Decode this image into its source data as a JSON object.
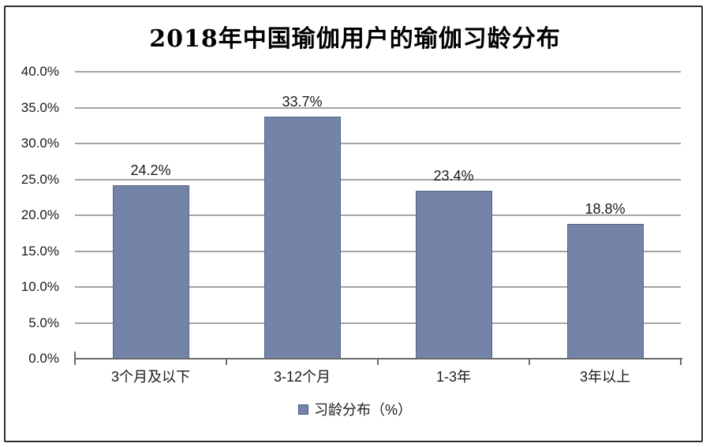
{
  "frame": {
    "background": "#ffffff",
    "border_color": "#2e2e2e"
  },
  "chart_data": {
    "type": "bar",
    "title": "2018年中国瑜伽用户的瑜伽习龄分布",
    "categories": [
      "3个月及以下",
      "3-12个月",
      "1-3年",
      "3年以上"
    ],
    "values": [
      24.2,
      33.7,
      23.4,
      18.8
    ],
    "value_labels": [
      "24.2%",
      "33.7%",
      "23.4%",
      "18.8%"
    ],
    "series": [
      {
        "name": "习龄分布（%）",
        "values": [
          24.2,
          33.7,
          23.4,
          18.8
        ]
      }
    ],
    "xlabel": "",
    "ylabel": "",
    "ylim": [
      0,
      40
    ],
    "ytick_step": 5,
    "ytick_labels_top_to_bottom": [
      "40.0%",
      "35.0%",
      "30.0%",
      "25.0%",
      "20.0%",
      "15.0%",
      "10.0%",
      "5.0%",
      "0.0%"
    ],
    "grid": true,
    "legend": {
      "label": "习龄分布（%）",
      "position": "bottom"
    },
    "colors": {
      "bar_fill": "#7484A8",
      "bar_border": "#55658E",
      "gridline": "#A4A4A4",
      "axis": "#6B6B6B",
      "text": "#1A1A1A",
      "legend_swatch_fill": "#7484A8",
      "legend_swatch_border": "#4A5A88"
    }
  }
}
